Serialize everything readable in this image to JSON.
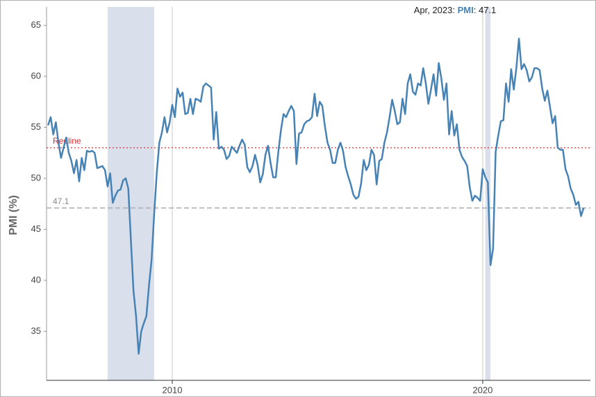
{
  "chart_data": {
    "type": "line",
    "y_label": "PMI (%)",
    "ylim": [
      30.2,
      66.8
    ],
    "yticks": [
      35,
      40,
      45,
      50,
      55,
      60,
      65
    ],
    "xlim": [
      2005.95,
      2023.47
    ],
    "xticks": [
      2010,
      2020
    ],
    "grid_x": true,
    "recessions": [
      [
        "2007-12",
        "2009-06"
      ],
      [
        "2020-02",
        "2020-04"
      ]
    ],
    "redline": {
      "label": "Redline",
      "value": 53,
      "color": "#e0282e"
    },
    "reference": 47.1,
    "tooltip": {
      "prefix": "Apr, 2023: ",
      "name": "PMI",
      "suffix": ": 47.1"
    },
    "x": [
      "2006-01",
      "2006-02",
      "2006-03",
      "2006-04",
      "2006-05",
      "2006-06",
      "2006-07",
      "2006-08",
      "2006-09",
      "2006-10",
      "2006-11",
      "2006-12",
      "2007-01",
      "2007-02",
      "2007-03",
      "2007-04",
      "2007-05",
      "2007-06",
      "2007-07",
      "2007-08",
      "2007-09",
      "2007-10",
      "2007-11",
      "2007-12",
      "2008-01",
      "2008-02",
      "2008-03",
      "2008-04",
      "2008-05",
      "2008-06",
      "2008-07",
      "2008-08",
      "2008-09",
      "2008-10",
      "2008-11",
      "2008-12",
      "2009-01",
      "2009-02",
      "2009-03",
      "2009-04",
      "2009-05",
      "2009-06",
      "2009-07",
      "2009-08",
      "2009-09",
      "2009-10",
      "2009-11",
      "2009-12",
      "2010-01",
      "2010-02",
      "2010-03",
      "2010-04",
      "2010-05",
      "2010-06",
      "2010-07",
      "2010-08",
      "2010-09",
      "2010-10",
      "2010-11",
      "2010-12",
      "2011-01",
      "2011-02",
      "2011-03",
      "2011-04",
      "2011-05",
      "2011-06",
      "2011-07",
      "2011-08",
      "2011-09",
      "2011-10",
      "2011-11",
      "2011-12",
      "2012-01",
      "2012-02",
      "2012-03",
      "2012-04",
      "2012-05",
      "2012-06",
      "2012-07",
      "2012-08",
      "2012-09",
      "2012-10",
      "2012-11",
      "2012-12",
      "2013-01",
      "2013-02",
      "2013-03",
      "2013-04",
      "2013-05",
      "2013-06",
      "2013-07",
      "2013-08",
      "2013-09",
      "2013-10",
      "2013-11",
      "2013-12",
      "2014-01",
      "2014-02",
      "2014-03",
      "2014-04",
      "2014-05",
      "2014-06",
      "2014-07",
      "2014-08",
      "2014-09",
      "2014-10",
      "2014-11",
      "2014-12",
      "2015-01",
      "2015-02",
      "2015-03",
      "2015-04",
      "2015-05",
      "2015-06",
      "2015-07",
      "2015-08",
      "2015-09",
      "2015-10",
      "2015-11",
      "2015-12",
      "2016-01",
      "2016-02",
      "2016-03",
      "2016-04",
      "2016-05",
      "2016-06",
      "2016-07",
      "2016-08",
      "2016-09",
      "2016-10",
      "2016-11",
      "2016-12",
      "2017-01",
      "2017-02",
      "2017-03",
      "2017-04",
      "2017-05",
      "2017-06",
      "2017-07",
      "2017-08",
      "2017-09",
      "2017-10",
      "2017-11",
      "2017-12",
      "2018-01",
      "2018-02",
      "2018-03",
      "2018-04",
      "2018-05",
      "2018-06",
      "2018-07",
      "2018-08",
      "2018-09",
      "2018-10",
      "2018-11",
      "2018-12",
      "2019-01",
      "2019-02",
      "2019-03",
      "2019-04",
      "2019-05",
      "2019-06",
      "2019-07",
      "2019-08",
      "2019-09",
      "2019-10",
      "2019-11",
      "2019-12",
      "2020-01",
      "2020-02",
      "2020-03",
      "2020-04",
      "2020-05",
      "2020-06",
      "2020-07",
      "2020-08",
      "2020-09",
      "2020-10",
      "2020-11",
      "2020-12",
      "2021-01",
      "2021-02",
      "2021-03",
      "2021-04",
      "2021-05",
      "2021-06",
      "2021-07",
      "2021-08",
      "2021-09",
      "2021-10",
      "2021-11",
      "2021-12",
      "2022-01",
      "2022-02",
      "2022-03",
      "2022-04",
      "2022-05",
      "2022-06",
      "2022-07",
      "2022-08",
      "2022-09",
      "2022-10",
      "2022-11",
      "2022-12",
      "2023-01",
      "2023-02",
      "2023-03",
      "2023-04"
    ],
    "series": [
      {
        "name": "PMI",
        "color": "#4682b4",
        "values": [
          55.2,
          56,
          54.3,
          55.5,
          53.5,
          52,
          53,
          54,
          52.5,
          51.7,
          50.5,
          51.8,
          49.7,
          52,
          50.8,
          52.7,
          52.6,
          52.7,
          52.5,
          51,
          51.1,
          51.2,
          50.8,
          49.2,
          50.5,
          47.6,
          48.3,
          48.8,
          48.9,
          49.8,
          50,
          49,
          44,
          39,
          36.5,
          32.8,
          35,
          35.8,
          36.5,
          39.5,
          42,
          46.5,
          50.5,
          53.5,
          54.5,
          56,
          54.5,
          55.5,
          57.2,
          56,
          58.8,
          58,
          58.4,
          56.3,
          56.4,
          57.8,
          56.3,
          57.8,
          57.7,
          57.5,
          59,
          59.3,
          59.1,
          58.9,
          53.8,
          56.5,
          52.9,
          53.1,
          52.8,
          51.9,
          52.2,
          53.1,
          52.8,
          52.5,
          53.2,
          53.8,
          53.3,
          51.1,
          50.6,
          51.2,
          52.3,
          51.3,
          49.6,
          50.4,
          52.3,
          53.2,
          51.5,
          50.1,
          50.1,
          52.6,
          54.7,
          56.3,
          56,
          56.6,
          57.1,
          56.6,
          51.4,
          54.4,
          54.5,
          55.3,
          55.6,
          55.7,
          56,
          58.3,
          56.1,
          57.5,
          57.1,
          55.1,
          53.5,
          52.8,
          51.5,
          51.5,
          52.8,
          53.5,
          52.7,
          51.1,
          50.2,
          49.4,
          48.4,
          48,
          48.2,
          49.5,
          51.8,
          50.8,
          51.3,
          52.8,
          52.3,
          49.4,
          51.7,
          51.9,
          53.5,
          54.5,
          56,
          57.7,
          56.6,
          55.3,
          55.5,
          57.8,
          56.3,
          59.3,
          60.2,
          58.5,
          58.2,
          59.3,
          59.1,
          60.8,
          59.3,
          57.3,
          58.7,
          60.2,
          58.1,
          61.3,
          59.8,
          57.7,
          59.3,
          54.3,
          56.6,
          54.2,
          55.3,
          52.8,
          52.1,
          51.7,
          51.2,
          49.1,
          47.8,
          48.3,
          48.1,
          47.8,
          50.9,
          50.1,
          49.6,
          41.5,
          43.1,
          52.6,
          54.2,
          55.6,
          55.7,
          59.3,
          57.5,
          60.7,
          58.7,
          60.8,
          63.7,
          60.7,
          61.2,
          60.6,
          59.5,
          59.9,
          60.8,
          60.8,
          60.6,
          58.8,
          57.6,
          58.6,
          57,
          55.4,
          56.1,
          53,
          52.8,
          52.8,
          50.9,
          50.2,
          49,
          48.4,
          47.4,
          47.7,
          46.3,
          47.1
        ]
      }
    ]
  }
}
